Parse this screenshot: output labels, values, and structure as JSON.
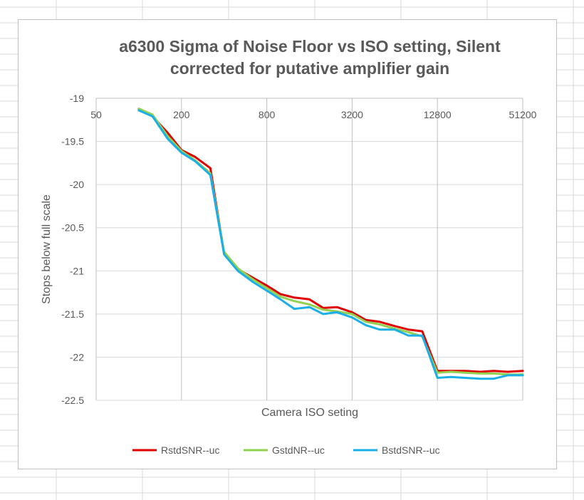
{
  "chart_data": {
    "type": "line",
    "title": "a6300 Sigma of Noise Floor vs ISO setting, Silent",
    "subtitle": "corrected for putative amplifier gain",
    "xlabel": "Camera ISO seting",
    "ylabel": "Stops below full scale",
    "x_scale": "log2",
    "xlim": [
      50,
      51200
    ],
    "x_ticks": [
      "50",
      "200",
      "800",
      "3200",
      "12800",
      "51200"
    ],
    "ylim": [
      -22.5,
      -19
    ],
    "y_ticks": [
      "-19",
      "-19.5",
      "-20",
      "-20.5",
      "-21",
      "-21.5",
      "-22",
      "-22.5"
    ],
    "grid": "horizontal",
    "legend_position": "bottom",
    "x": [
      100,
      125,
      160,
      200,
      250,
      320,
      400,
      500,
      640,
      800,
      1000,
      1250,
      1600,
      2000,
      2500,
      3200,
      4000,
      5000,
      6400,
      8000,
      10000,
      12800,
      16000,
      20000,
      25600,
      32000,
      40000,
      51200
    ],
    "series": [
      {
        "name": "RstdSNR--uc",
        "color": "#e00000",
        "values": [
          -19.13,
          -19.21,
          -19.4,
          -19.6,
          -19.68,
          -19.81,
          -20.8,
          -20.98,
          -21.08,
          -21.17,
          -21.27,
          -21.31,
          -21.33,
          -21.43,
          -21.42,
          -21.48,
          -21.57,
          -21.59,
          -21.64,
          -21.68,
          -21.7,
          -22.16,
          -22.16,
          -22.16,
          -22.17,
          -22.16,
          -22.17,
          -22.16
        ]
      },
      {
        "name": "GstdNR--uc",
        "color": "#92d050",
        "values": [
          -19.12,
          -19.19,
          -19.44,
          -19.61,
          -19.72,
          -19.87,
          -20.78,
          -20.97,
          -21.1,
          -21.2,
          -21.3,
          -21.35,
          -21.39,
          -21.45,
          -21.47,
          -21.5,
          -21.59,
          -21.62,
          -21.67,
          -21.71,
          -21.76,
          -22.18,
          -22.17,
          -22.18,
          -22.19,
          -22.19,
          -22.2,
          -22.2
        ]
      },
      {
        "name": "BstdSNR--uc",
        "color": "#1aafe6",
        "values": [
          -19.14,
          -19.21,
          -19.47,
          -19.63,
          -19.73,
          -19.89,
          -20.81,
          -21.0,
          -21.13,
          -21.23,
          -21.33,
          -21.44,
          -21.42,
          -21.5,
          -21.48,
          -21.54,
          -21.63,
          -21.68,
          -21.68,
          -21.75,
          -21.75,
          -22.24,
          -22.23,
          -22.24,
          -22.25,
          -22.25,
          -22.21,
          -22.21
        ]
      }
    ]
  }
}
